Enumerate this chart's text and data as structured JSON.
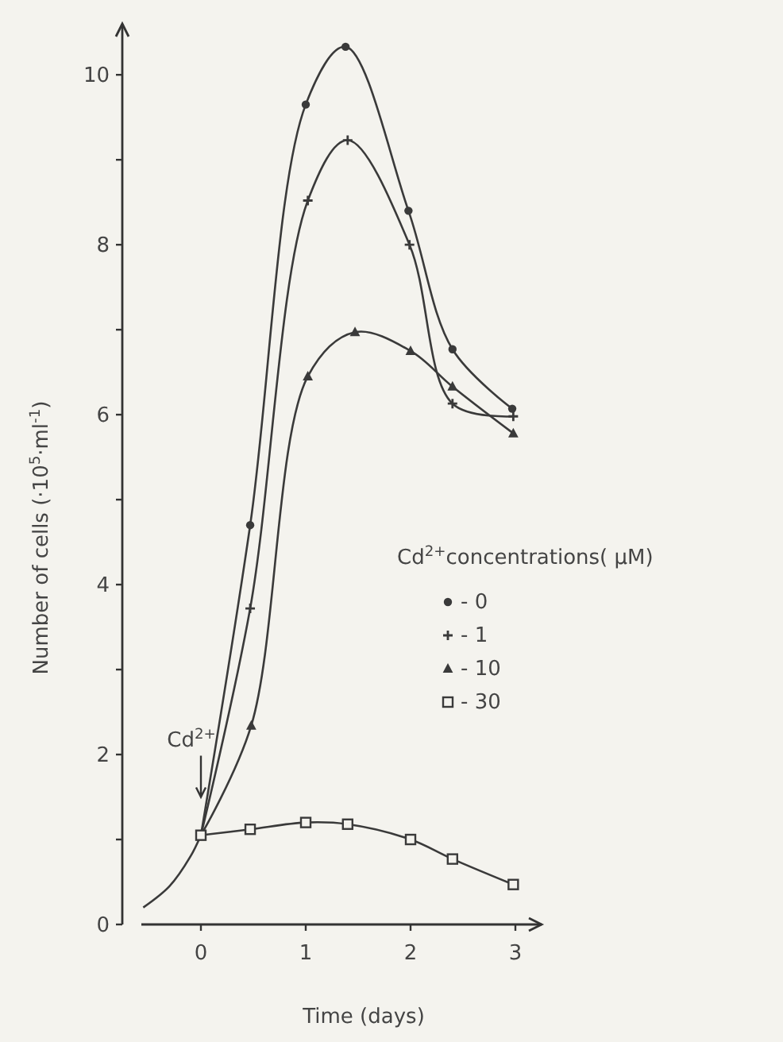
{
  "chart_data": {
    "type": "line",
    "xlabel": "Time (days)",
    "ylabel": "Number of cells (·10$^{5}$·ml$^{-1}$)",
    "legend_title": "Cd$^{2+}$concentrations( μM)",
    "legend": "right",
    "xlim": [
      -0.75,
      3.25
    ],
    "ylim": [
      0,
      10.6
    ],
    "xticks": [
      0,
      1,
      2,
      3
    ],
    "yticks": [
      0,
      {
        "value": 1,
        "label": null
      },
      2,
      {
        "value": 3,
        "label": null
      },
      4,
      {
        "value": 5,
        "label": null
      },
      6,
      {
        "value": 7,
        "label": null
      },
      8,
      {
        "value": 9,
        "label": null
      },
      10
    ],
    "grid": false,
    "annotations": [
      {
        "text": "Cd$^{2+}$",
        "x": 0,
        "y": 1.5
      }
    ],
    "series": [
      {
        "color": "#3a3a3a",
        "marker": "none",
        "x": [
          -0.55,
          -0.3,
          -0.1,
          0
        ],
        "values": [
          0.2,
          0.45,
          0.8,
          1.05
        ]
      },
      {
        "name": "- 0",
        "color": "#3a3a3a",
        "marker": "circle",
        "x": [
          0,
          0.47,
          1.0,
          1.38,
          1.98,
          2.4,
          2.97
        ],
        "values": [
          1.05,
          4.7,
          9.65,
          10.33,
          8.4,
          6.77,
          6.07
        ]
      },
      {
        "name": "- 1",
        "color": "#3a3a3a",
        "marker": "cross",
        "x": [
          0,
          0.47,
          1.02,
          1.4,
          1.99,
          2.4,
          2.98
        ],
        "values": [
          1.05,
          3.72,
          8.52,
          9.23,
          8.0,
          6.13,
          5.98
        ]
      },
      {
        "name": "- 10",
        "color": "#3a3a3a",
        "marker": "triangle",
        "x": [
          0,
          0.48,
          1.02,
          1.47,
          2.0,
          2.4,
          2.98
        ],
        "values": [
          1.05,
          2.34,
          6.45,
          6.97,
          6.75,
          6.33,
          5.78
        ]
      },
      {
        "name": "- 30",
        "color": "#3a3a3a",
        "marker": "square",
        "x": [
          0,
          0.47,
          1.0,
          1.4,
          2.0,
          2.4,
          2.98
        ],
        "values": [
          1.05,
          1.12,
          1.2,
          1.18,
          1.0,
          0.77,
          0.47
        ]
      }
    ]
  }
}
